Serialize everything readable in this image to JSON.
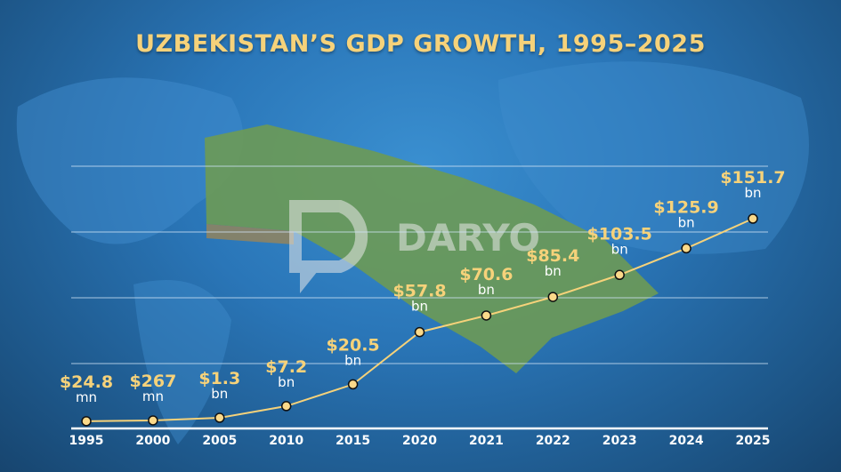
{
  "chart_data": {
    "type": "line",
    "title": "UZBEKISTAN’S GDP GROWTH, 1995–2025",
    "categories": [
      "1995",
      "2000",
      "2005",
      "2010",
      "2015",
      "2020",
      "2021",
      "2022",
      "2023",
      "2024",
      "2025"
    ],
    "values_bn": [
      0.0248,
      0.267,
      1.3,
      7.2,
      20.5,
      57.8,
      70.6,
      85.4,
      103.5,
      125.9,
      151.7
    ],
    "labels": [
      {
        "value": "$24.8",
        "unit": "mn"
      },
      {
        "value": "$267",
        "unit": "mn"
      },
      {
        "value": "$1.3",
        "unit": "bn"
      },
      {
        "value": "$7.2",
        "unit": "bn"
      },
      {
        "value": "$20.5",
        "unit": "bn"
      },
      {
        "value": "$57.8",
        "unit": "bn"
      },
      {
        "value": "$70.6",
        "unit": "bn"
      },
      {
        "value": "$85.4",
        "unit": "bn"
      },
      {
        "value": "$103.5",
        "unit": "bn"
      },
      {
        "value": "$125.9",
        "unit": "bn"
      },
      {
        "value": "$151.7",
        "unit": "bn"
      }
    ],
    "grid": true,
    "line_color": "#f6d27a",
    "marker_color": "#fbd98a"
  },
  "watermark": "DARYO"
}
